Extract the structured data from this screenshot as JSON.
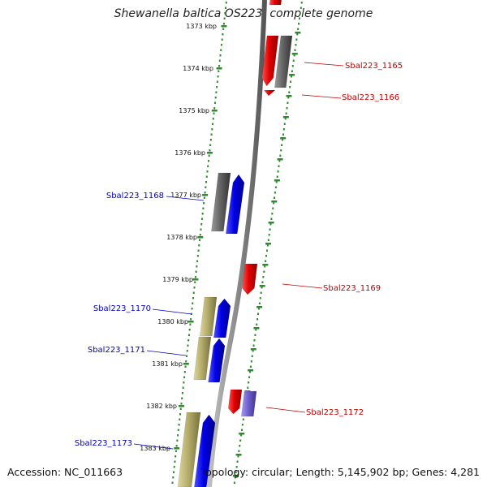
{
  "title": "Shewanella baltica OS223, complete genome",
  "footer": {
    "accession": "Accession: NC_011663",
    "summary": "Topology: circular; Length: 5,145,902 bp; Genes: 4,281"
  },
  "colors": {
    "backbone": "#8a8a8a",
    "tick": "#2e8b2e",
    "dots": "#2e8b2e",
    "plus_label": "#c00000",
    "minus_label": "#0000c0",
    "cds_red": "#e00000",
    "cds_blue": "#0000ee",
    "cds_gray": "#666666",
    "cds_khaki": "#b5ad6b",
    "cds_purple": "#7060d0"
  },
  "scale_labels": [
    "1373 kbp",
    "1374 kbp",
    "1375 kbp",
    "1376 kbp",
    "1377 kbp",
    "1378 kbp",
    "1379 kbp",
    "1380 kbp",
    "1381 kbp",
    "1382 kbp",
    "1383 kbp"
  ],
  "gene_labels": {
    "plus": [
      "Sbal223_1165",
      "Sbal223_1166",
      "Sbal223_1169",
      "Sbal223_1172"
    ],
    "minus": [
      "Sbal223_1168",
      "Sbal223_1170",
      "Sbal223_1171",
      "Sbal223_1173"
    ]
  },
  "feature_icons": [
    "cds-arrow-icon"
  ]
}
